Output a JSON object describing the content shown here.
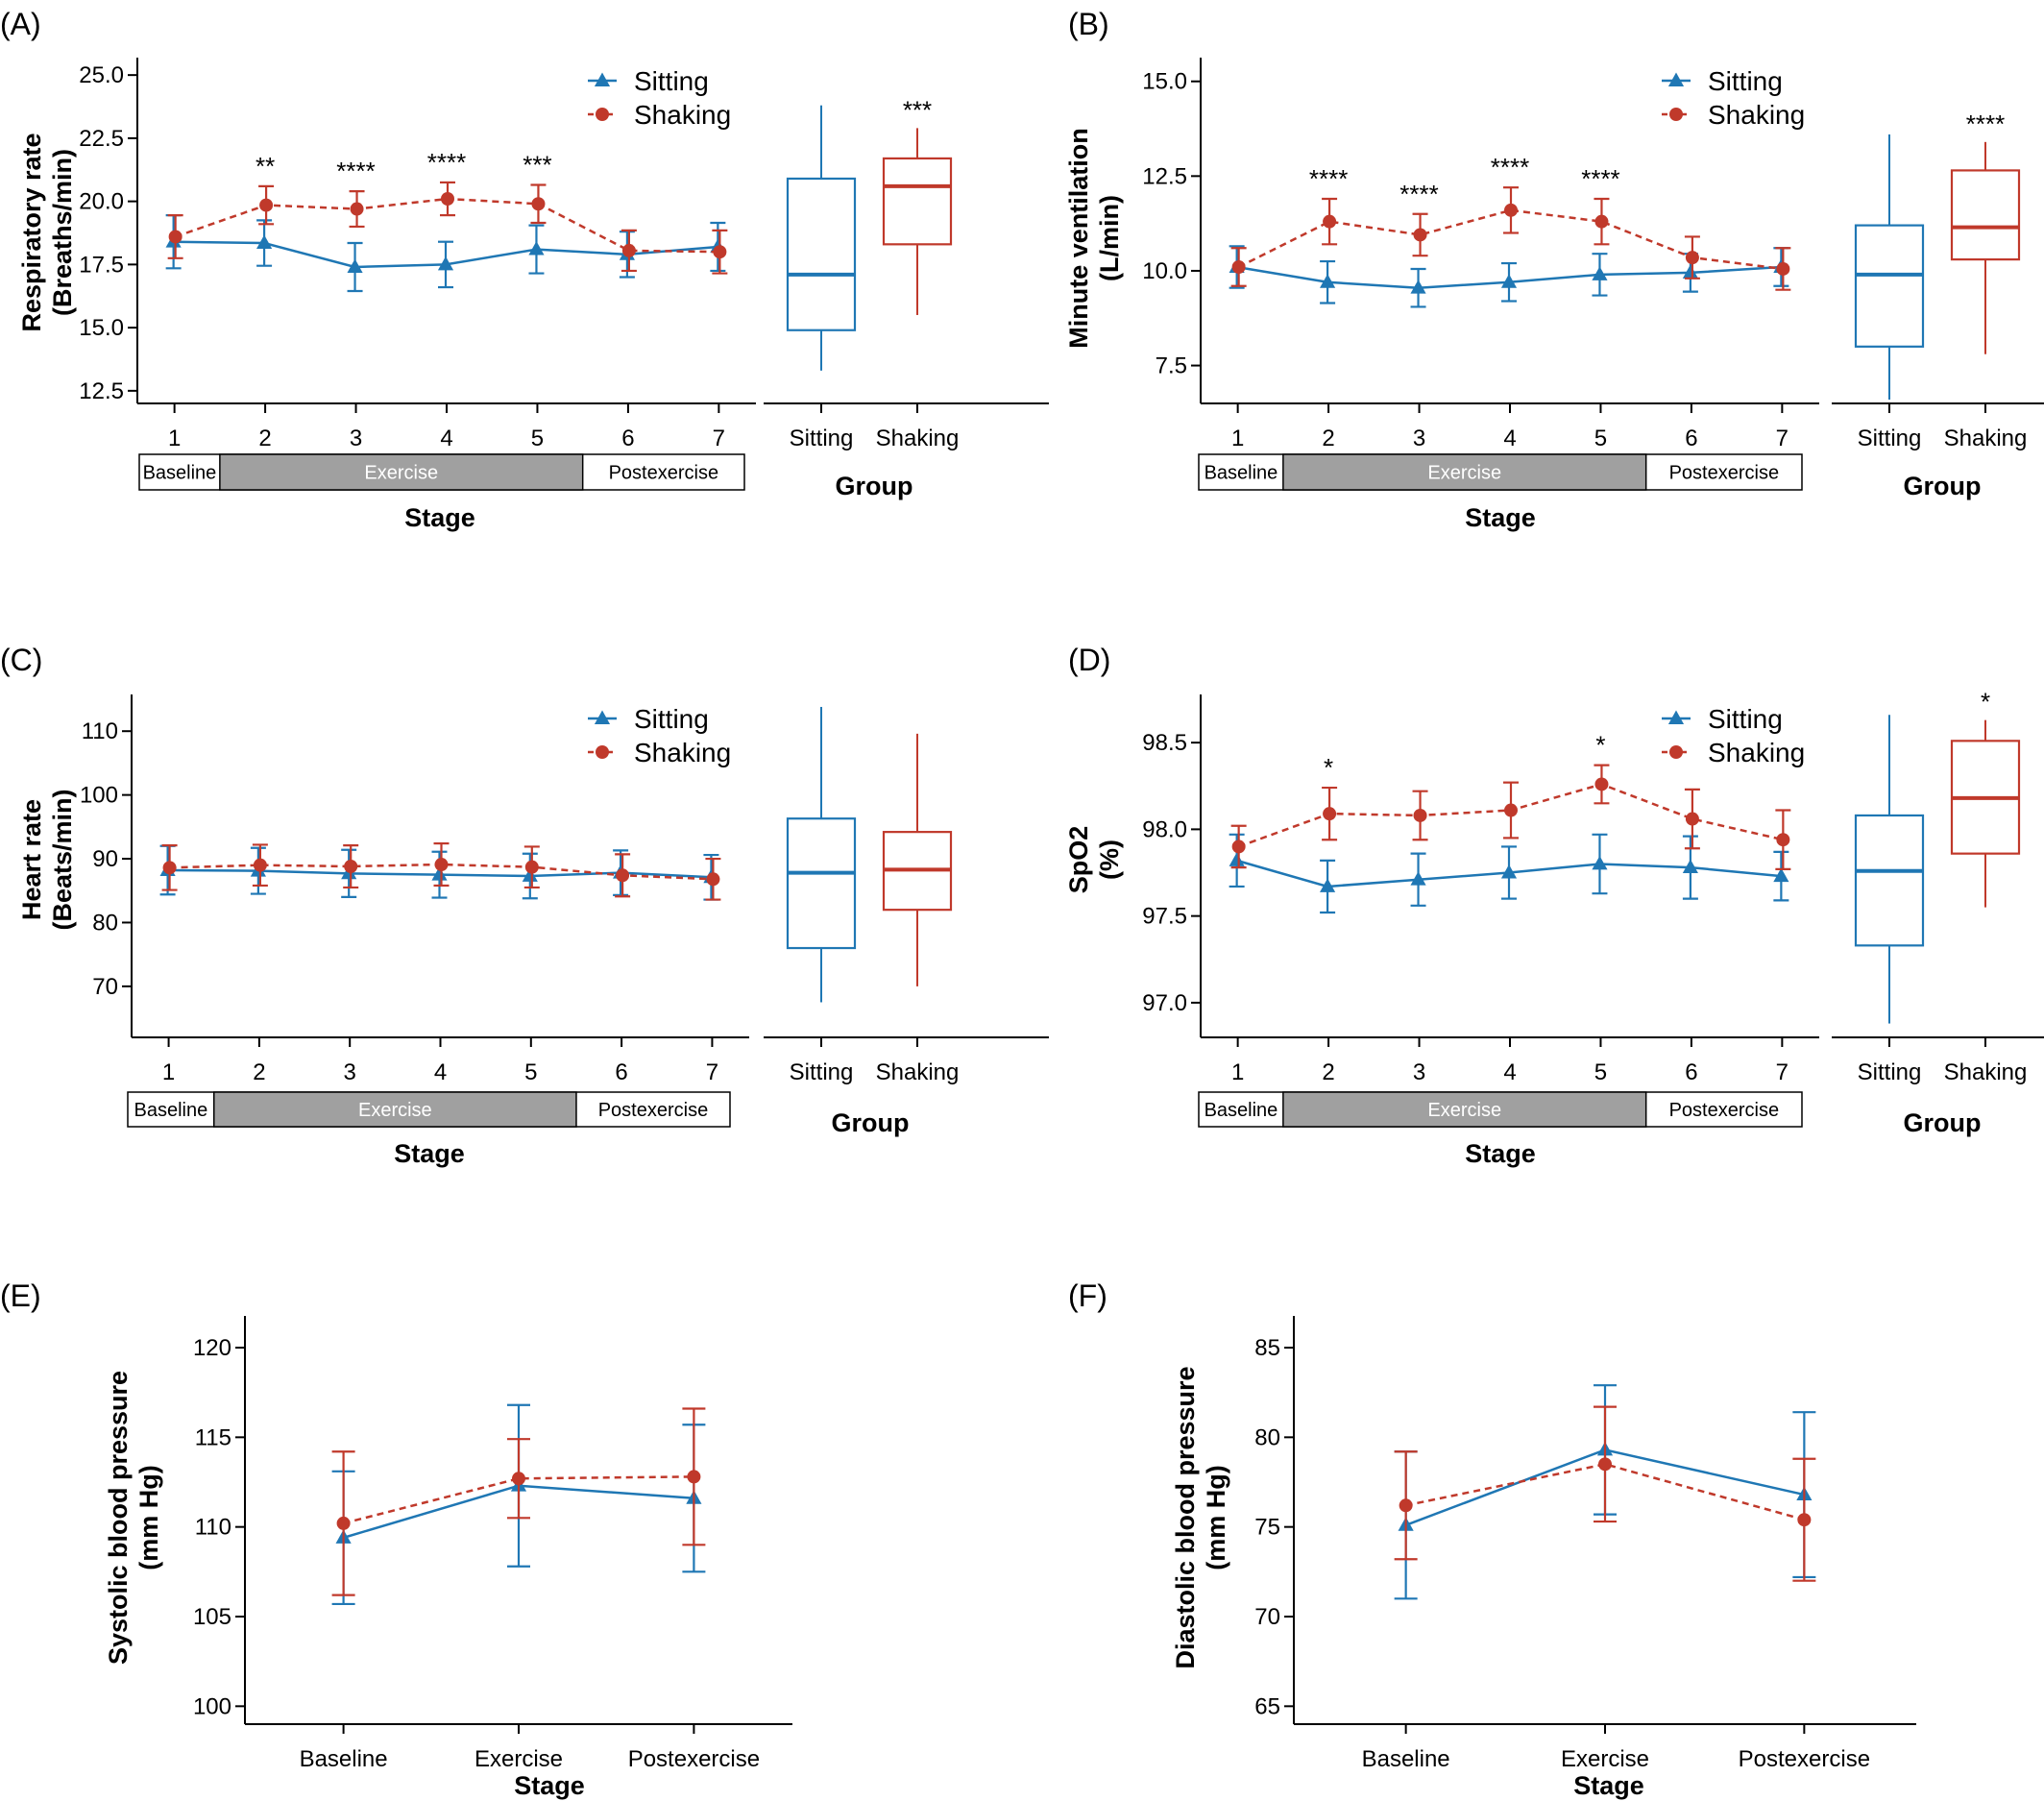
{
  "colors": {
    "sitting": "#1f77b4",
    "shaking": "#c0392b",
    "band_fill": "#a0a0a0"
  },
  "chart_data": [
    {
      "panel": "(A)",
      "type": "line",
      "ylabel": "Respiratory rate\n(Breaths/min)",
      "xlabel": "Stage",
      "ylim": [
        12.0,
        25.5
      ],
      "yticks": [
        "12.5",
        "15.0",
        "17.5",
        "20.0",
        "22.5",
        "25.0"
      ],
      "categories": [
        "1",
        "2",
        "3",
        "4",
        "5",
        "6",
        "7"
      ],
      "bands": [
        "Baseline",
        "Exercise",
        "Postexercise"
      ],
      "legend": [
        "Sitting",
        "Shaking"
      ],
      "series": [
        {
          "name": "Sitting",
          "values": [
            18.4,
            18.35,
            17.4,
            17.5,
            18.1,
            17.9,
            18.2
          ],
          "err": [
            1.05,
            0.9,
            0.95,
            0.9,
            0.95,
            0.9,
            0.95
          ]
        },
        {
          "name": "Shaking",
          "values": [
            18.6,
            19.85,
            19.7,
            20.1,
            19.9,
            18.05,
            18.0
          ],
          "err": [
            0.85,
            0.75,
            0.7,
            0.65,
            0.75,
            0.8,
            0.85
          ]
        }
      ],
      "significance": [
        "",
        "**",
        "****",
        "****",
        "***",
        "",
        ""
      ],
      "box_xlabel": "Group",
      "boxplot": {
        "categories": [
          "Sitting",
          "Shaking"
        ],
        "stats": [
          {
            "whislo": 13.3,
            "q1": 14.9,
            "med": 17.1,
            "q3": 20.9,
            "whishi": 23.8
          },
          {
            "whislo": 15.5,
            "q1": 18.3,
            "med": 20.6,
            "q3": 21.7,
            "whishi": 22.9
          }
        ],
        "significance": [
          "",
          "***"
        ]
      }
    },
    {
      "panel": "(B)",
      "type": "line",
      "ylabel": "Minute ventilation\n(L/min)",
      "xlabel": "Stage",
      "ylim": [
        6.5,
        15.5
      ],
      "yticks": [
        "7.5",
        "10.0",
        "12.5",
        "15.0"
      ],
      "categories": [
        "1",
        "2",
        "3",
        "4",
        "5",
        "6",
        "7"
      ],
      "bands": [
        "Baseline",
        "Exercise",
        "Postexercise"
      ],
      "legend": [
        "Sitting",
        "Shaking"
      ],
      "series": [
        {
          "name": "Sitting",
          "values": [
            10.1,
            9.7,
            9.55,
            9.7,
            9.9,
            9.95,
            10.1
          ],
          "err": [
            0.55,
            0.55,
            0.5,
            0.5,
            0.55,
            0.5,
            0.5
          ]
        },
        {
          "name": "Shaking",
          "values": [
            10.1,
            11.3,
            10.95,
            11.6,
            11.3,
            10.35,
            10.05
          ],
          "err": [
            0.5,
            0.6,
            0.55,
            0.6,
            0.6,
            0.55,
            0.55
          ]
        }
      ],
      "significance": [
        "",
        "****",
        "****",
        "****",
        "****",
        "",
        ""
      ],
      "box_xlabel": "Group",
      "boxplot": {
        "categories": [
          "Sitting",
          "Shaking"
        ],
        "stats": [
          {
            "whislo": 6.6,
            "q1": 8.0,
            "med": 9.9,
            "q3": 11.2,
            "whishi": 13.6
          },
          {
            "whislo": 7.8,
            "q1": 10.3,
            "med": 11.15,
            "q3": 12.65,
            "whishi": 13.4
          }
        ],
        "significance": [
          "",
          "****"
        ]
      }
    },
    {
      "panel": "(C)",
      "type": "line",
      "ylabel": "Heart rate\n(Beats/min)",
      "xlabel": "Stage",
      "ylim": [
        62,
        115
      ],
      "yticks": [
        "70",
        "80",
        "90",
        "100",
        "110"
      ],
      "categories": [
        "1",
        "2",
        "3",
        "4",
        "5",
        "6",
        "7"
      ],
      "bands": [
        "Baseline",
        "Exercise",
        "Postexercise"
      ],
      "legend": [
        "Sitting",
        "Shaking"
      ],
      "series": [
        {
          "name": "Sitting",
          "values": [
            88.2,
            88.1,
            87.7,
            87.5,
            87.3,
            87.8,
            87.1
          ],
          "err": [
            3.8,
            3.6,
            3.7,
            3.6,
            3.5,
            3.5,
            3.5
          ]
        },
        {
          "name": "Shaking",
          "values": [
            88.6,
            89.0,
            88.8,
            89.1,
            88.7,
            87.4,
            86.8
          ],
          "err": [
            3.5,
            3.2,
            3.3,
            3.3,
            3.2,
            3.3,
            3.2
          ]
        }
      ],
      "significance": [
        "",
        "",
        "",
        "",
        "",
        "",
        ""
      ],
      "box_xlabel": "Group",
      "boxplot": {
        "categories": [
          "Sitting",
          "Shaking"
        ],
        "stats": [
          {
            "whislo": 67.5,
            "q1": 76.0,
            "med": 87.8,
            "q3": 96.3,
            "whishi": 113.8
          },
          {
            "whislo": 70.0,
            "q1": 82.0,
            "med": 88.3,
            "q3": 94.2,
            "whishi": 109.6
          }
        ],
        "significance": [
          "",
          ""
        ]
      }
    },
    {
      "panel": "(D)",
      "type": "line",
      "ylabel": "SpO2\n(%)",
      "xlabel": "Stage",
      "ylim": [
        96.8,
        98.75
      ],
      "yticks": [
        "97.0",
        "97.5",
        "98.0",
        "98.5"
      ],
      "categories": [
        "1",
        "2",
        "3",
        "4",
        "5",
        "6",
        "7"
      ],
      "bands": [
        "Baseline",
        "Exercise",
        "Postexercise"
      ],
      "legend": [
        "Sitting",
        "Shaking"
      ],
      "series": [
        {
          "name": "Sitting",
          "values": [
            97.82,
            97.67,
            97.71,
            97.75,
            97.8,
            97.78,
            97.73
          ],
          "err": [
            0.15,
            0.15,
            0.15,
            0.15,
            0.17,
            0.18,
            0.14
          ]
        },
        {
          "name": "Shaking",
          "values": [
            97.9,
            98.09,
            98.08,
            98.11,
            98.26,
            98.06,
            97.94
          ],
          "err": [
            0.12,
            0.15,
            0.14,
            0.16,
            0.11,
            0.17,
            0.17
          ]
        }
      ],
      "significance": [
        "",
        "*",
        "",
        "",
        "*",
        "",
        ""
      ],
      "box_xlabel": "Group",
      "boxplot": {
        "categories": [
          "Sitting",
          "Shaking"
        ],
        "stats": [
          {
            "whislo": 96.88,
            "q1": 97.33,
            "med": 97.76,
            "q3": 98.08,
            "whishi": 98.66
          },
          {
            "whislo": 97.55,
            "q1": 97.86,
            "med": 98.18,
            "q3": 98.51,
            "whishi": 98.63
          }
        ],
        "significance": [
          "",
          "*"
        ]
      }
    },
    {
      "panel": "(E)",
      "type": "line",
      "ylabel": "Systolic blood pressure\n(mm Hg)",
      "xlabel": "Stage",
      "ylim": [
        99,
        121.5
      ],
      "yticks": [
        "100",
        "105",
        "110",
        "115",
        "120"
      ],
      "categories": [
        "Baseline",
        "Exercise",
        "Postexercise"
      ],
      "series": [
        {
          "name": "Sitting",
          "values": [
            109.4,
            112.3,
            111.6
          ],
          "err": [
            3.7,
            4.5,
            4.1
          ]
        },
        {
          "name": "Shaking",
          "values": [
            110.2,
            112.7,
            112.8
          ],
          "err": [
            4.0,
            2.2,
            3.8
          ]
        }
      ]
    },
    {
      "panel": "(F)",
      "type": "line",
      "ylabel": "Diastolic blood pressure\n(mm Hg)",
      "xlabel": "Stage",
      "ylim": [
        64,
        86.5
      ],
      "yticks": [
        "65",
        "70",
        "75",
        "80",
        "85"
      ],
      "categories": [
        "Baseline",
        "Exercise",
        "Postexercise"
      ],
      "series": [
        {
          "name": "Sitting",
          "values": [
            75.1,
            79.3,
            76.8
          ],
          "err": [
            4.1,
            3.6,
            4.6
          ]
        },
        {
          "name": "Shaking",
          "values": [
            76.2,
            78.5,
            75.4
          ],
          "err": [
            3.0,
            3.2,
            3.4
          ]
        }
      ]
    }
  ]
}
